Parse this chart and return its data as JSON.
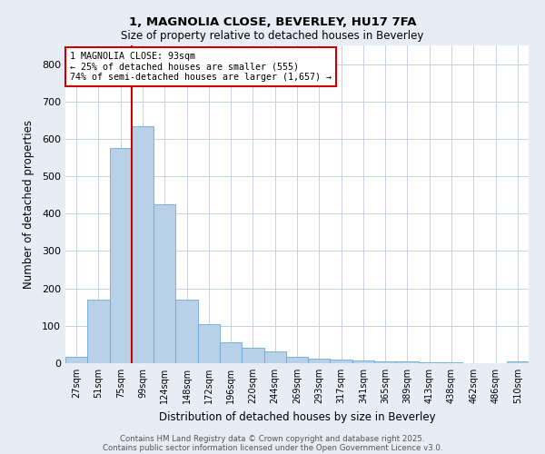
{
  "title1": "1, MAGNOLIA CLOSE, BEVERLEY, HU17 7FA",
  "title2": "Size of property relative to detached houses in Beverley",
  "xlabel": "Distribution of detached houses by size in Beverley",
  "ylabel": "Number of detached properties",
  "categories": [
    "27sqm",
    "51sqm",
    "75sqm",
    "99sqm",
    "124sqm",
    "148sqm",
    "172sqm",
    "196sqm",
    "220sqm",
    "244sqm",
    "269sqm",
    "293sqm",
    "317sqm",
    "341sqm",
    "365sqm",
    "389sqm",
    "413sqm",
    "438sqm",
    "462sqm",
    "486sqm",
    "510sqm"
  ],
  "values": [
    18,
    170,
    575,
    635,
    425,
    170,
    105,
    57,
    42,
    32,
    16,
    12,
    10,
    8,
    6,
    4,
    3,
    2,
    1,
    1,
    6
  ],
  "bar_color": "#b8d0e8",
  "bar_edgecolor": "#6aaad4",
  "vline_color": "#cc0000",
  "annotation_line1": "1 MAGNOLIA CLOSE: 93sqm",
  "annotation_line2": "← 25% of detached houses are smaller (555)",
  "annotation_line3": "74% of semi-detached houses are larger (1,657) →",
  "annotation_box_color": "#cc0000",
  "ylim": [
    0,
    850
  ],
  "yticks": [
    0,
    100,
    200,
    300,
    400,
    500,
    600,
    700,
    800
  ],
  "footnote1": "Contains HM Land Registry data © Crown copyright and database right 2025.",
  "footnote2": "Contains public sector information licensed under the Open Government Licence v3.0.",
  "bg_color": "#e8ecf5",
  "plot_bg_color": "#ffffff",
  "grid_color": "#c8d0e0"
}
